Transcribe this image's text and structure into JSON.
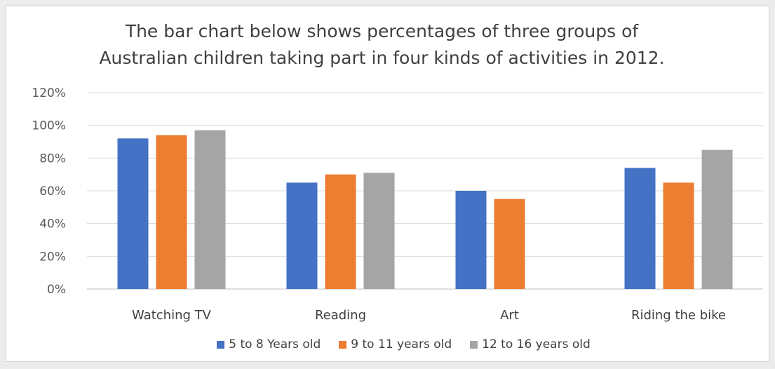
{
  "chart_data": {
    "type": "bar",
    "title_lines": [
      "The bar chart below shows percentages of three groups of",
      "Australian children taking part in four kinds of activities in 2012."
    ],
    "categories": [
      "Watching TV",
      "Reading",
      "Art",
      "Riding the bike"
    ],
    "series": [
      {
        "name": "5 to 8 Years old",
        "color": "#4472c4",
        "values": [
          92,
          65,
          60,
          74
        ]
      },
      {
        "name": "9 to 11 years old",
        "color": "#ed7d31",
        "values": [
          94,
          70,
          55,
          65
        ]
      },
      {
        "name": "12 to 16 years old",
        "color": "#a5a5a5",
        "values": [
          97,
          71,
          null,
          85
        ]
      }
    ],
    "y_ticks": [
      "0%",
      "20%",
      "40%",
      "60%",
      "80%",
      "100%",
      "120%"
    ],
    "ylim": [
      0,
      120
    ],
    "xlabel": "",
    "ylabel": "",
    "grid": true,
    "legend_position": "bottom"
  }
}
